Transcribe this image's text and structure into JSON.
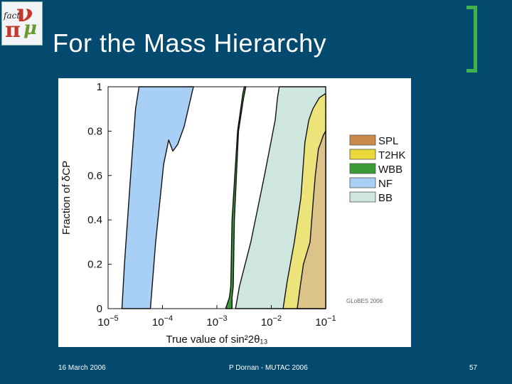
{
  "slide": {
    "title": "For the Mass Hierarchy",
    "footer_date": "16 March 2006",
    "footer_center": "P Dornan - MUTAC 2006",
    "page_number": "57",
    "logo_text": "fact"
  },
  "chart_data": {
    "type": "area",
    "x_scale": "log",
    "xlim": [
      1e-05,
      0.1
    ],
    "ylim": [
      0,
      1
    ],
    "xlabel": "True value of sin²2θ₁₃",
    "ylabel": "Fraction of δCP",
    "xticks": [
      {
        "value": 1e-05,
        "mant": "10",
        "exp": "−5"
      },
      {
        "value": 0.0001,
        "mant": "10",
        "exp": "−4"
      },
      {
        "value": 0.001,
        "mant": "10",
        "exp": "−3"
      },
      {
        "value": 0.01,
        "mant": "10",
        "exp": "−2"
      },
      {
        "value": 0.1,
        "mant": "10",
        "exp": "−1"
      }
    ],
    "yticks": [
      {
        "value": 0,
        "label": "0"
      },
      {
        "value": 0.2,
        "label": "0.2"
      },
      {
        "value": 0.4,
        "label": "0.4"
      },
      {
        "value": 0.6,
        "label": "0.6"
      },
      {
        "value": 0.8,
        "label": "0.8"
      },
      {
        "value": 1,
        "label": "1"
      }
    ],
    "credit": "GLoBES 2006",
    "legend_placement": "right",
    "series": [
      {
        "name": "BB",
        "color": "#cfe6de",
        "left": [
          [
            0.0022,
            0
          ],
          [
            0.0026,
            0.1
          ],
          [
            0.0042,
            0.3
          ],
          [
            0.0075,
            0.6
          ],
          [
            0.0118,
            0.85
          ],
          [
            0.013,
            0.95
          ],
          [
            0.014,
            1
          ]
        ],
        "right": [
          [
            0.1,
            1
          ],
          [
            0.1,
            0
          ]
        ]
      },
      {
        "name": "NF",
        "color": "#a8cff5",
        "left": [
          [
            1.8e-05,
            0
          ],
          [
            2e-05,
            0.2
          ],
          [
            2.6e-05,
            0.6
          ],
          [
            3.2e-05,
            0.9
          ],
          [
            3.7e-05,
            1
          ]
        ],
        "right": [
          [
            0.00037,
            1
          ],
          [
            0.00025,
            0.82
          ],
          [
            0.00019,
            0.74
          ],
          [
            0.000155,
            0.71
          ],
          [
            0.00013,
            0.76
          ],
          [
            0.000105,
            0.65
          ],
          [
            7.5e-05,
            0.3
          ],
          [
            6e-05,
            0
          ]
        ]
      },
      {
        "name": "WBB",
        "color": "#3a9a36",
        "left": [
          [
            0.00145,
            0
          ],
          [
            0.0017,
            0.05
          ],
          [
            0.0018,
            0.1
          ],
          [
            0.0019,
            0.4
          ],
          [
            0.0024,
            0.8
          ],
          [
            0.003,
            0.97
          ],
          [
            0.0032,
            1
          ]
        ],
        "right": [
          [
            0.0034,
            1
          ],
          [
            0.0031,
            0.95
          ],
          [
            0.0025,
            0.8
          ],
          [
            0.0021,
            0.4
          ],
          [
            0.002,
            0.1
          ],
          [
            0.0019,
            0.05
          ],
          [
            0.0019,
            0
          ]
        ]
      },
      {
        "name": "T2HK",
        "color": "#ece37a",
        "left": [
          [
            0.0165,
            0
          ],
          [
            0.0195,
            0.12
          ],
          [
            0.0265,
            0.3
          ],
          [
            0.035,
            0.5
          ],
          [
            0.0415,
            0.75
          ],
          [
            0.049,
            0.85
          ],
          [
            0.058,
            0.9
          ],
          [
            0.076,
            0.95
          ],
          [
            0.1,
            0.97
          ]
        ],
        "right": [
          [
            0.1,
            0
          ]
        ]
      },
      {
        "name": "SPL",
        "color": "#dcc38a",
        "left": [
          [
            0.03,
            0
          ],
          [
            0.034,
            0.1
          ],
          [
            0.039,
            0.2
          ],
          [
            0.0515,
            0.3
          ],
          [
            0.0595,
            0.5
          ],
          [
            0.0645,
            0.6
          ],
          [
            0.0735,
            0.72
          ],
          [
            0.082,
            0.75
          ],
          [
            0.09,
            0.78
          ],
          [
            0.1,
            0.8
          ]
        ],
        "right": [
          [
            0.1,
            0
          ]
        ]
      }
    ],
    "legend_order": [
      "SPL",
      "T2HK",
      "WBB",
      "NF",
      "BB"
    ],
    "legend_colors": {
      "SPL": "#c98a4a",
      "T2HK": "#e9da3a",
      "WBB": "#3a9a36",
      "NF": "#a8cff5",
      "BB": "#cfe6de"
    }
  }
}
